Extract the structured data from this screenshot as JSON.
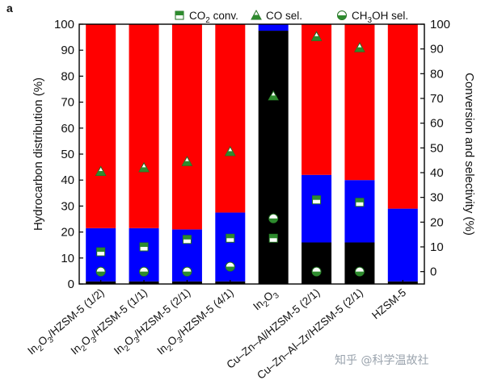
{
  "panel_label": "a",
  "watermark": "知乎 @科学温故社",
  "chart_data": {
    "type": "bar",
    "stacked": true,
    "categories": [
      {
        "formula": [
          [
            "In"
          ],
          [
            "2",
            "sub"
          ],
          [
            "O"
          ],
          [
            "3",
            "sub"
          ],
          [
            "/HZSM-5 (1/2)"
          ]
        ]
      },
      {
        "formula": [
          [
            "In"
          ],
          [
            "2",
            "sub"
          ],
          [
            "O"
          ],
          [
            "3",
            "sub"
          ],
          [
            "/HZSM-5 (1/1)"
          ]
        ]
      },
      {
        "formula": [
          [
            "In"
          ],
          [
            "2",
            "sub"
          ],
          [
            "O"
          ],
          [
            "3",
            "sub"
          ],
          [
            "/HZSM-5 (2/1)"
          ]
        ]
      },
      {
        "formula": [
          [
            "In"
          ],
          [
            "2",
            "sub"
          ],
          [
            "O"
          ],
          [
            "3",
            "sub"
          ],
          [
            "/HZSM-5 (4/1)"
          ]
        ]
      },
      {
        "formula": [
          [
            "In"
          ],
          [
            "2",
            "sub"
          ],
          [
            "O"
          ],
          [
            "3",
            "sub"
          ]
        ]
      },
      {
        "formula": [
          [
            "Cu–Zn–Al/HZSM-5 (2/1)"
          ]
        ]
      },
      {
        "formula": [
          [
            "Cu–Zn–Al–Zr/HZSM-5 (2/1)"
          ]
        ]
      },
      {
        "formula": [
          [
            "HZSM-5"
          ]
        ]
      }
    ],
    "left_axis": {
      "label": "Hydrocarbon distribution (%)",
      "ylim": [
        0,
        100
      ],
      "ticks": [
        "0",
        "10",
        "20",
        "30",
        "40",
        "50",
        "60",
        "70",
        "80",
        "90",
        "100"
      ]
    },
    "right_axis": {
      "label": "Conversion and selectivity (%)",
      "ylim": [
        -5,
        100
      ],
      "ticks": [
        "0",
        "10",
        "20",
        "30",
        "40",
        "50",
        "60",
        "70",
        "80",
        "90",
        "100"
      ]
    },
    "stack_colors": [
      "#000000",
      "#0000ff",
      "#ff0000"
    ],
    "stack_series": [
      {
        "values": [
          1,
          1,
          1,
          1,
          97.5,
          16,
          16,
          1
        ]
      },
      {
        "values": [
          20.5,
          20.5,
          20,
          26.5,
          2.5,
          26,
          24,
          28
        ]
      },
      {
        "values": [
          78.5,
          78.5,
          79,
          72.5,
          0,
          58,
          60,
          71
        ]
      }
    ],
    "marker_series": [
      {
        "name": [
          [
            "CO"
          ],
          [
            "2",
            "sub"
          ],
          [
            " conv."
          ]
        ],
        "marker": "square",
        "color": "#2e8b2e",
        "values": [
          8,
          10,
          13,
          13.5,
          13.5,
          29,
          28,
          null
        ]
      },
      {
        "name": [
          [
            "CO sel."
          ]
        ],
        "marker": "triangle",
        "color": "#2e8b2e",
        "values": [
          40.5,
          42,
          44.5,
          48.5,
          71,
          95,
          90.5,
          null
        ]
      },
      {
        "name": [
          [
            "CH"
          ],
          [
            "3",
            "sub"
          ],
          [
            "OH sel."
          ]
        ],
        "marker": "circle",
        "color": "#2e8b2e",
        "values": [
          0,
          0,
          0,
          2,
          21.5,
          0,
          0,
          null
        ]
      }
    ]
  }
}
